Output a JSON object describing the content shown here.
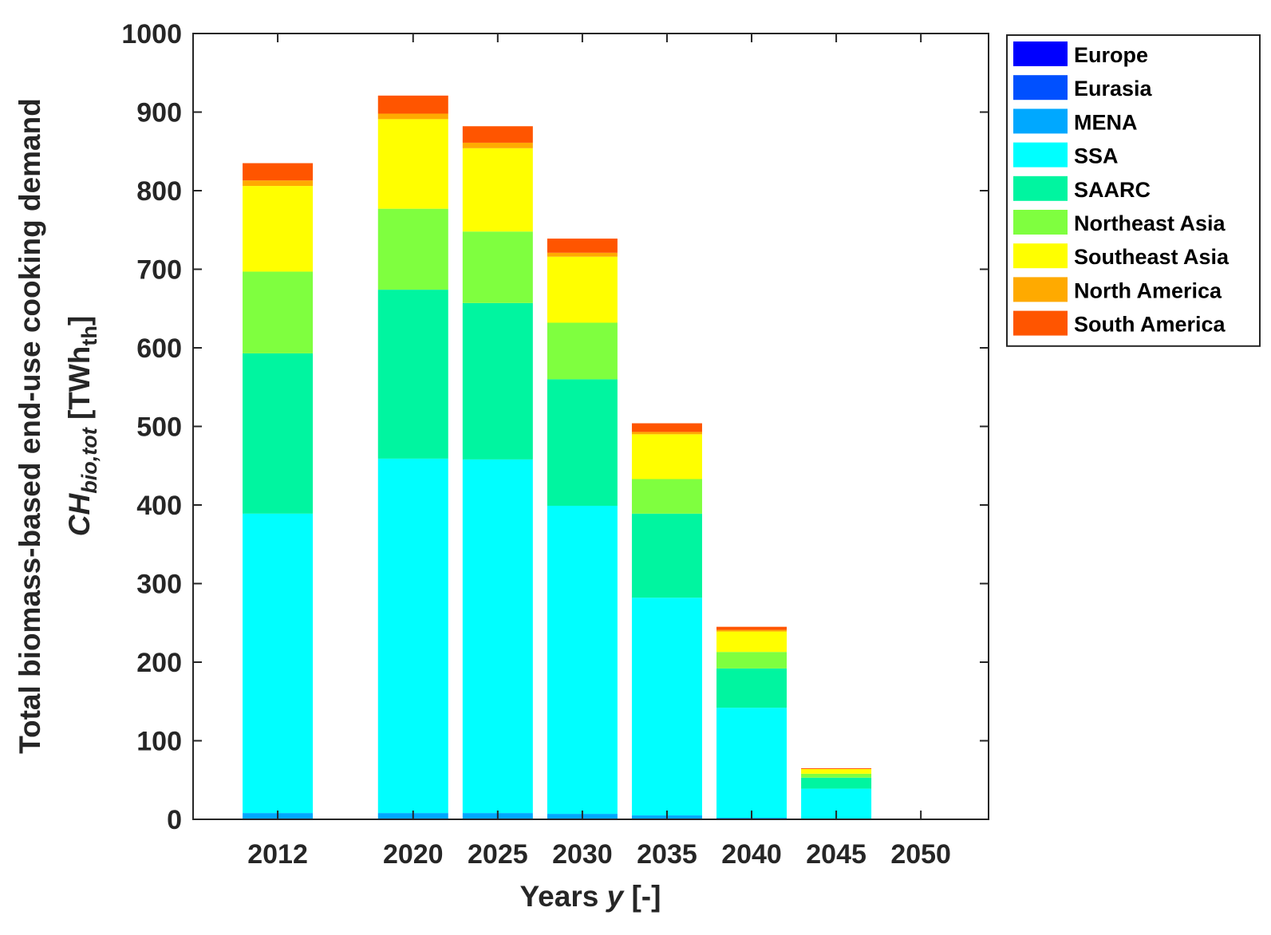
{
  "chart_data": {
    "type": "bar",
    "stacked": true,
    "categories": [
      "2012",
      "2020",
      "2025",
      "2030",
      "2035",
      "2040",
      "2045",
      "2050"
    ],
    "x": [
      2012,
      2020,
      2025,
      2030,
      2035,
      2040,
      2045,
      2050
    ],
    "xlabel_prefix": "Years ",
    "xlabel_var": "y",
    "xlabel_suffix": " [-]",
    "ylabel_line1": "Total biomass-based end-use cooking demand",
    "ylabel_var": "CH",
    "ylabel_sub": "bio,tot",
    "ylabel_unit_prefix": " [TWh",
    "ylabel_unit_sub": "th",
    "ylabel_unit_suffix": "]",
    "ylim": [
      0,
      1000
    ],
    "yticks": [
      0,
      100,
      200,
      300,
      400,
      500,
      600,
      700,
      800,
      900,
      1000
    ],
    "xlim": [
      2007,
      2054
    ],
    "grid": false,
    "legend_position": "outside-top-right",
    "series": [
      {
        "name": "Europe",
        "color": "#0000ff",
        "values": [
          0,
          0,
          0,
          0,
          0,
          0,
          0,
          0
        ]
      },
      {
        "name": "Eurasia",
        "color": "#0050ff",
        "values": [
          1,
          1,
          1,
          1,
          1,
          0,
          0,
          0
        ]
      },
      {
        "name": "MENA",
        "color": "#00a8ff",
        "values": [
          7,
          7,
          7,
          6,
          4,
          2,
          1,
          0
        ]
      },
      {
        "name": "SSA",
        "color": "#00ffff",
        "values": [
          381,
          451,
          450,
          392,
          277,
          140,
          38,
          0
        ]
      },
      {
        "name": "SAARC",
        "color": "#00f5a0",
        "values": [
          204,
          215,
          199,
          161,
          107,
          50,
          14,
          0
        ]
      },
      {
        "name": "Northeast Asia",
        "color": "#7fff3f",
        "values": [
          104,
          103,
          91,
          72,
          44,
          21,
          5,
          0
        ]
      },
      {
        "name": "Southeast Asia",
        "color": "#ffff00",
        "values": [
          109,
          114,
          106,
          84,
          57,
          26,
          6,
          0
        ]
      },
      {
        "name": "North America",
        "color": "#ffaa00",
        "values": [
          7,
          7,
          7,
          5,
          3,
          2,
          0,
          0
        ]
      },
      {
        "name": "South America",
        "color": "#ff5500",
        "values": [
          22,
          23,
          21,
          18,
          11,
          4,
          1,
          0
        ]
      }
    ]
  }
}
